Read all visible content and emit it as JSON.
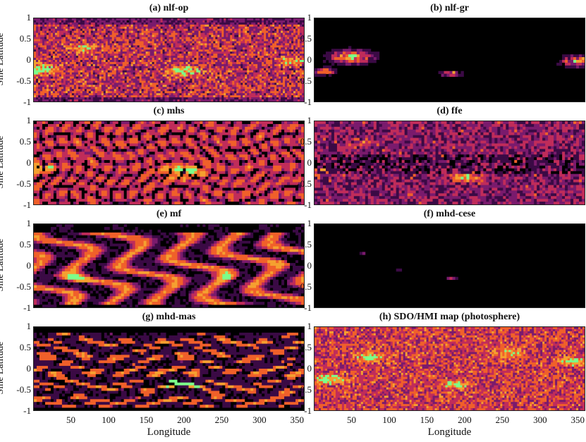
{
  "chart_data": {
    "type": "heatmap",
    "panels": [
      {
        "id": "a",
        "title": "(a) nlf-op",
        "style": "noisy"
      },
      {
        "id": "b",
        "title": "(b) nlf-gr",
        "style": "sparse"
      },
      {
        "id": "c",
        "title": "(c) mhs",
        "style": "cells"
      },
      {
        "id": "d",
        "title": "(d) ffe",
        "style": "blocky"
      },
      {
        "id": "e",
        "title": "(e) mf",
        "style": "bands"
      },
      {
        "id": "f",
        "title": "(f) mhd-cese",
        "style": "empty"
      },
      {
        "id": "g",
        "title": "(g) mhd-mas",
        "style": "loops"
      },
      {
        "id": "h",
        "title": "(h) SDO/HMI map (photosphere)",
        "style": "speckle"
      }
    ],
    "ylabel": "Sine Latitude",
    "xlabel": "Longitude",
    "yticks": [
      "1",
      "0.5",
      "0",
      "-0.5",
      "-1"
    ],
    "xticks": [
      "50",
      "100",
      "150",
      "200",
      "250",
      "300",
      "350"
    ],
    "xlim": [
      0,
      360
    ],
    "ylim": [
      -1,
      1
    ],
    "colormap": [
      "#000000",
      "#3b0a45",
      "#7a1b6d",
      "#c02c5a",
      "#f0602a",
      "#f5a030",
      "#7cff8a"
    ]
  }
}
